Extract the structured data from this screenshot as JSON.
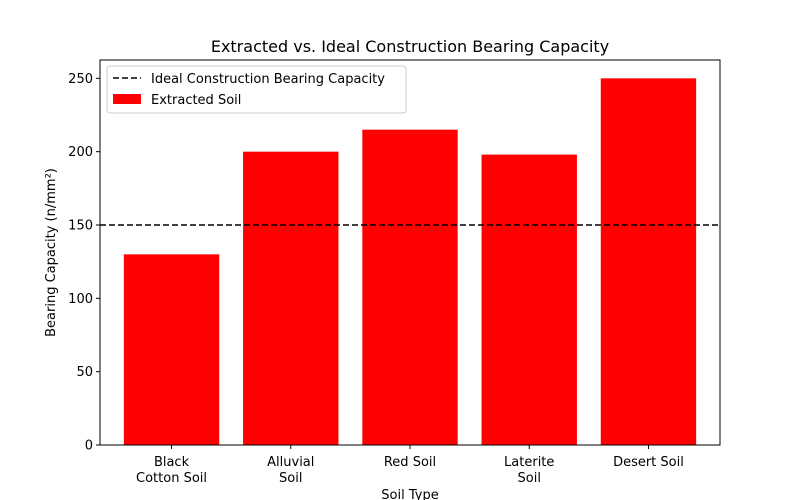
{
  "chart_data": {
    "type": "bar",
    "title": "Extracted vs. Ideal Construction Bearing Capacity",
    "xlabel": "Soil Type",
    "ylabel": "Bearing Capacity (n/mm²)",
    "categories": [
      [
        "Black",
        "Cotton Soil"
      ],
      [
        "Alluvial",
        "Soil"
      ],
      [
        "Red Soil"
      ],
      [
        "Laterite",
        "Soil"
      ],
      [
        "Desert Soil"
      ]
    ],
    "series": [
      {
        "name": "Extracted Soil",
        "values": [
          130,
          200,
          215,
          198,
          250
        ],
        "color": "#ff0000"
      }
    ],
    "reference_line": {
      "name": "Ideal Construction Bearing Capacity",
      "value": 150,
      "style": "dashed",
      "color": "#000000"
    },
    "ylim": [
      0,
      262.5
    ],
    "yticks": [
      0,
      50,
      100,
      150,
      200,
      250
    ],
    "legend_position": "top-left",
    "grid": false
  }
}
